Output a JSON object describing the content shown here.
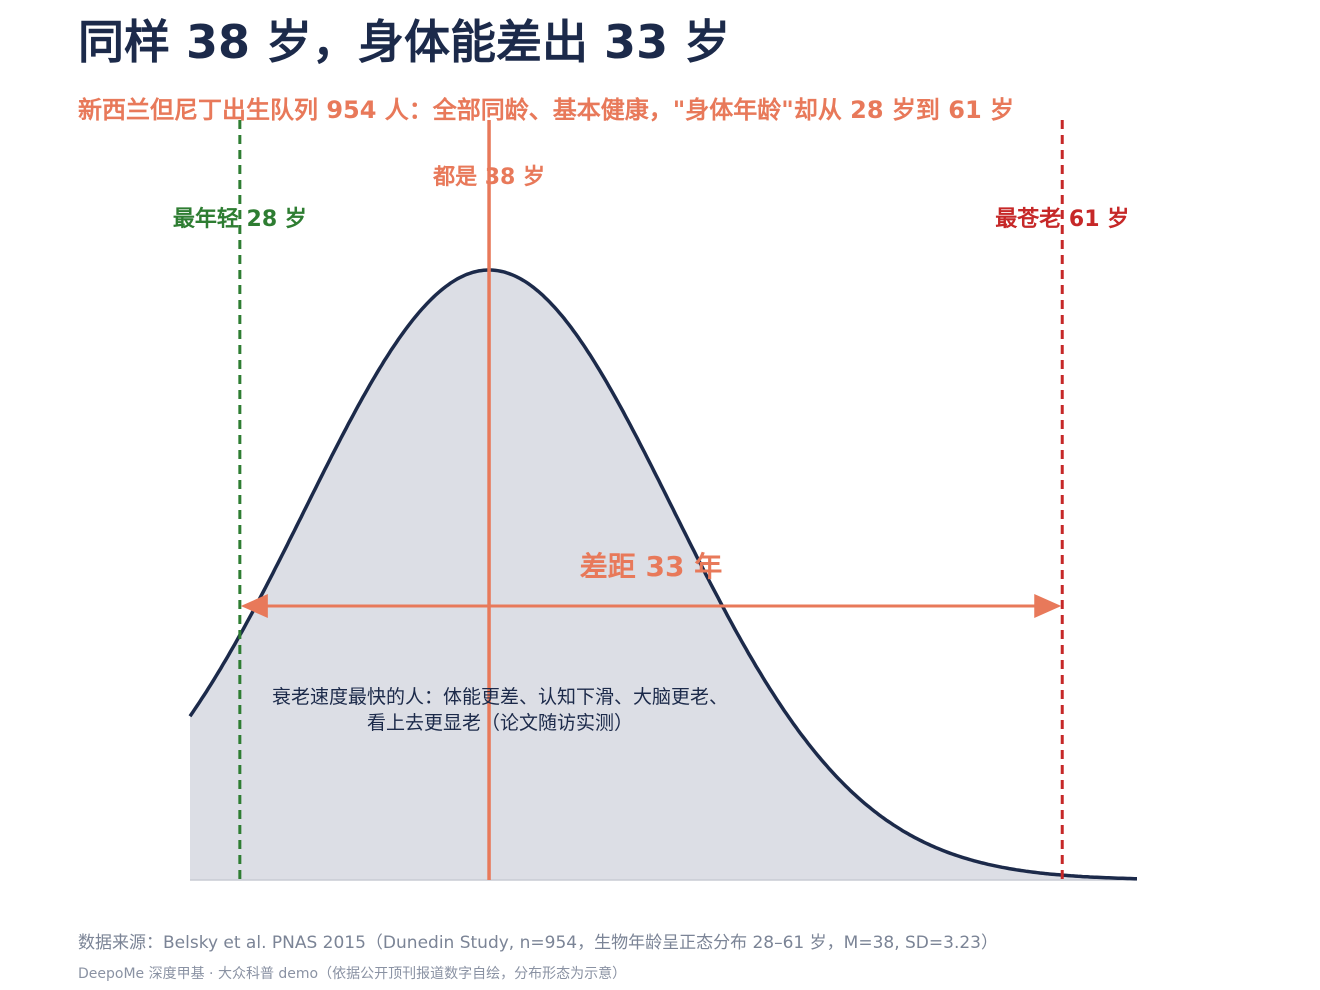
{
  "header": {
    "title": "同样 38 岁，身体能差出 33 岁",
    "subtitle": "新西兰但尼丁出生队列 954 人：全部同龄、基本健康，\"身体年龄\"却从 28 岁到 61 岁"
  },
  "footer": {
    "source": "数据来源：Belsky et al. PNAS 2015（Dunedin Study, n=954，生物年龄呈正态分布 28–61 岁，M=38, SD=3.23）",
    "credit": "DeepoMe 深度甲基 · 大众科普 demo（依据公开顶刊报道数字自绘，分布形态为示意）"
  },
  "chart_data": {
    "type": "area",
    "distribution": "normal",
    "mean": 38,
    "sd": 3.23,
    "n": 954,
    "xlim": [
      26,
      64
    ],
    "markers": [
      {
        "value": 28,
        "label": "最年轻 28 岁",
        "style": "dashed",
        "color": "#2e7d32"
      },
      {
        "value": 38,
        "label": "都是 38 岁",
        "style": "solid",
        "color": "#e8795a"
      },
      {
        "value": 61,
        "label": "最苍老 61 岁",
        "style": "dashed",
        "color": "#c62828"
      }
    ],
    "range_annotation": {
      "from": 28,
      "to": 61,
      "label": "差距 33 年",
      "color": "#e8795a"
    },
    "note_lines": [
      "衰老速度最快的人：体能更差、认知下滑、大脑更老、",
      "看上去更显老（论文随访实测）"
    ],
    "colors": {
      "curve": "#1c2a4a",
      "fill": "#dcdee5",
      "baseline": "#c8cbd3"
    }
  }
}
